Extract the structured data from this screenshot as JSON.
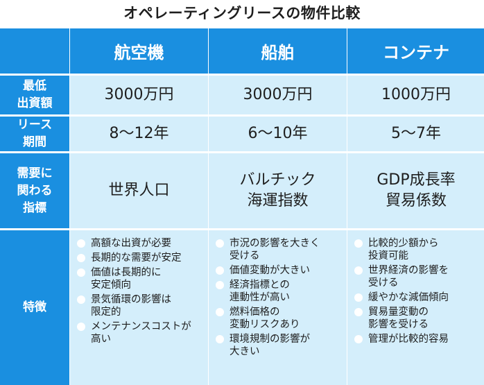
{
  "title": "オペレーティングリースの物件比較",
  "columns": [
    "航空機",
    "船舶",
    "コンテナ"
  ],
  "rows": [
    {
      "label": "最低\n出資額",
      "values": [
        "3000万円",
        "3000万円",
        "1000万円"
      ]
    },
    {
      "label": "リース\n期間",
      "values": [
        "8～12年",
        "6～10年",
        "5～7年"
      ]
    },
    {
      "label": "需要に\n関わる\n指標",
      "values": [
        "世界人口",
        "バルチック\n海運指数",
        "GDP成長率\n貿易係数"
      ]
    }
  ],
  "features": {
    "label": "特徴",
    "aircraft": [
      "高額な出資が必要",
      "長期的な需要が安定",
      "価値は長期的に\n安定傾向",
      "景気循環の影響は\n限定的",
      "メンテナンスコストが\n高い"
    ],
    "ship": [
      "市況の影響を大きく\n受ける",
      "価値変動が大きい",
      "経済指標との\n連動性が高い",
      "燃料価格の\n変動リスクあり",
      "環境規制の影響が\n大きい"
    ],
    "container": [
      "比較的少額から\n投資可能",
      "世界経済の影響を\n受ける",
      "緩やかな減価傾向",
      "貿易量変動の\n影響を受ける",
      "管理が比較的容易"
    ]
  }
}
